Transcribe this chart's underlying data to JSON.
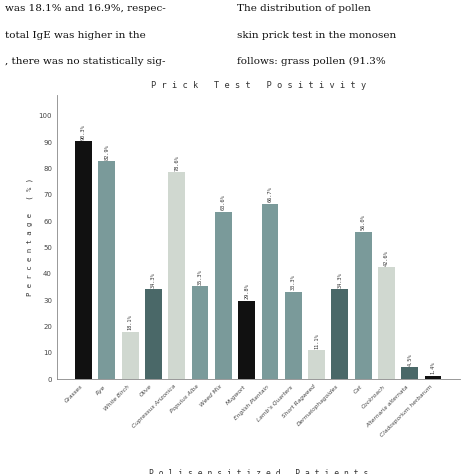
{
  "title": "P r i c k   T e s t   P o s i t i v i t y",
  "xlabel": "P o l i s e n s i t i z e d   P a t i e n t s",
  "ylabel": "P e r c e n t a g e   ( % )",
  "categories": [
    "Grasses",
    "Rye",
    "White Birch",
    "Olive",
    "Cupressus Arizonica",
    "Populus Alba",
    "Weed Mix",
    "Mugwort",
    "English Plantain",
    "Lamb's Quarters",
    "Short Ragweed",
    "Dermatophagoides",
    "Cat",
    "Cockroach",
    "Alternaria alternata",
    "Cladosporium herbarum"
  ],
  "values": [
    90.3,
    82.9,
    18.1,
    34.3,
    78.6,
    35.3,
    63.6,
    29.8,
    66.7,
    33.3,
    11.1,
    34.3,
    56.0,
    42.6,
    4.5,
    1.4
  ],
  "bar_colors": [
    "#111111",
    "#7a9a9a",
    "#d0d8d0",
    "#4a6868",
    "#d0d8d0",
    "#7a9a9a",
    "#7a9a9a",
    "#111111",
    "#7a9a9a",
    "#7a9a9a",
    "#d0d8d0",
    "#4a6868",
    "#7a9a9a",
    "#d0d8d0",
    "#4a6868",
    "#111111"
  ],
  "ylim": [
    0,
    108
  ],
  "yticks": [
    0,
    10,
    20,
    30,
    40,
    50,
    60,
    70,
    80,
    90,
    100
  ],
  "bg_color": "#ffffff",
  "text_line1": "was 18.1% and 16.9%, respec-",
  "text_line2": "total IgE was higher in the",
  "text_line3": ", there was no statistically sig-",
  "text_right1": "The distribution of pollen",
  "text_right2": "skin prick test in the monosen",
  "text_right3": "follows: grass pollen (91.3%"
}
